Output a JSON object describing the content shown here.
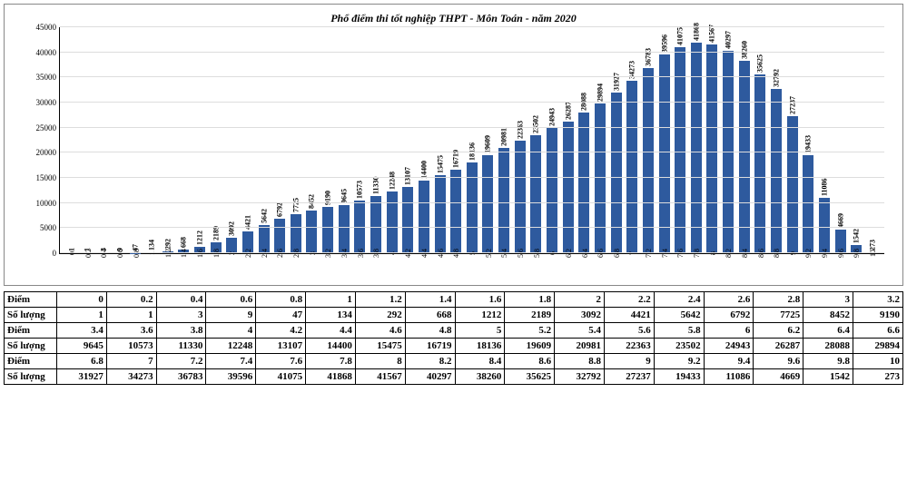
{
  "chart": {
    "type": "bar",
    "title": "Phổ điểm thi tốt nghiệp THPT - Môn Toán - năm 2020",
    "title_fontsize": 12,
    "bar_color": "#2e5a9e",
    "background_color": "#ffffff",
    "grid_color": "#dddddd",
    "axis_color": "#000000",
    "label_fontsize": 8,
    "value_fontsize": 8,
    "categories": [
      "0",
      "0.2",
      "0.4",
      "0.6",
      "0.8",
      "1",
      "1.2",
      "1.4",
      "1.6",
      "1.8",
      "2",
      "2.2",
      "2.4",
      "2.6",
      "2.8",
      "3",
      "3.2",
      "3.4",
      "3.6",
      "3.8",
      "4",
      "4.2",
      "4.4",
      "4.6",
      "4.8",
      "5",
      "5.2",
      "5.4",
      "5.6",
      "5.8",
      "6",
      "6.2",
      "6.4",
      "6.6",
      "6.8",
      "7",
      "7.2",
      "7.4",
      "7.6",
      "7.8",
      "8",
      "8.2",
      "8.4",
      "8.6",
      "8.8",
      "9",
      "9.2",
      "9.4",
      "9.6",
      "9.8",
      "10"
    ],
    "values": [
      1,
      1,
      3,
      9,
      47,
      134,
      292,
      668,
      1212,
      2189,
      3092,
      4421,
      5642,
      6792,
      7725,
      8452,
      9190,
      9645,
      10573,
      11330,
      12248,
      13107,
      14400,
      15475,
      16719,
      18136,
      19609,
      20981,
      22363,
      23502,
      24943,
      26287,
      28088,
      29894,
      31927,
      34273,
      36783,
      39596,
      41075,
      41868,
      41567,
      40297,
      38260,
      35625,
      32792,
      27237,
      19433,
      11086,
      4669,
      1542,
      273
    ],
    "ylim": [
      0,
      45000
    ],
    "ytick_step": 5000,
    "bar_width": 0.68
  },
  "table": {
    "row_label_diem": "Điểm",
    "row_label_soluong": "Số lượng",
    "rows": [
      {
        "scores": [
          "0",
          "0.2",
          "0.4",
          "0.6",
          "0.8",
          "1",
          "1.2",
          "1.4",
          "1.6",
          "1.8",
          "2",
          "2.2",
          "2.4",
          "2.6",
          "2.8",
          "3",
          "3.2"
        ],
        "counts": [
          "1",
          "1",
          "3",
          "9",
          "47",
          "134",
          "292",
          "668",
          "1212",
          "2189",
          "3092",
          "4421",
          "5642",
          "6792",
          "7725",
          "8452",
          "9190"
        ]
      },
      {
        "scores": [
          "3.4",
          "3.6",
          "3.8",
          "4",
          "4.2",
          "4.4",
          "4.6",
          "4.8",
          "5",
          "5.2",
          "5.4",
          "5.6",
          "5.8",
          "6",
          "6.2",
          "6.4",
          "6.6"
        ],
        "counts": [
          "9645",
          "10573",
          "11330",
          "12248",
          "13107",
          "14400",
          "15475",
          "16719",
          "18136",
          "19609",
          "20981",
          "22363",
          "23502",
          "24943",
          "26287",
          "28088",
          "29894"
        ]
      },
      {
        "scores": [
          "6.8",
          "7",
          "7.2",
          "7.4",
          "7.6",
          "7.8",
          "8",
          "8.2",
          "8.4",
          "8.6",
          "8.8",
          "9",
          "9.2",
          "9.4",
          "9.6",
          "9.8",
          "10"
        ],
        "counts": [
          "31927",
          "34273",
          "36783",
          "39596",
          "41075",
          "41868",
          "41567",
          "40297",
          "38260",
          "35625",
          "32792",
          "27237",
          "19433",
          "11086",
          "4669",
          "1542",
          "273"
        ]
      }
    ]
  }
}
